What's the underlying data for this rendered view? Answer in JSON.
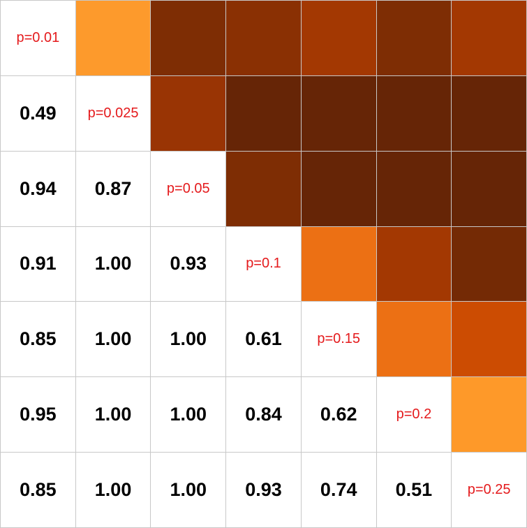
{
  "chart_data": {
    "type": "heatmap",
    "labels": [
      "p=0.01",
      "p=0.025",
      "p=0.05",
      "p=0.1",
      "p=0.15",
      "p=0.2",
      "p=0.25"
    ],
    "lower_triangle_values": [
      [
        null,
        null,
        null,
        null,
        null,
        null,
        null
      ],
      [
        "0.49",
        null,
        null,
        null,
        null,
        null,
        null
      ],
      [
        "0.94",
        "0.87",
        null,
        null,
        null,
        null,
        null
      ],
      [
        "0.91",
        "1.00",
        "0.93",
        null,
        null,
        null,
        null
      ],
      [
        "0.85",
        "1.00",
        "1.00",
        "0.61",
        null,
        null,
        null
      ],
      [
        "0.95",
        "1.00",
        "1.00",
        "0.84",
        "0.62",
        null,
        null
      ],
      [
        "0.85",
        "1.00",
        "1.00",
        "0.93",
        "0.74",
        "0.51",
        null
      ]
    ],
    "upper_triangle_colors": [
      [
        null,
        "#fd9a2c",
        "#7e2d04",
        "#8a3003",
        "#a33802",
        "#7e2d04",
        "#a33802"
      ],
      [
        null,
        null,
        "#993404",
        "#662506",
        "#662506",
        "#662506",
        "#662506"
      ],
      [
        null,
        null,
        null,
        "#7e2d04",
        "#662506",
        "#662506",
        "#662506"
      ],
      [
        null,
        null,
        null,
        null,
        "#ec7014",
        "#a33802",
        "#742a05"
      ],
      [
        null,
        null,
        null,
        null,
        null,
        "#ec7014",
        "#cc4c02"
      ],
      [
        null,
        null,
        null,
        null,
        null,
        null,
        "#fe9929"
      ],
      [
        null,
        null,
        null,
        null,
        null,
        null,
        null
      ]
    ],
    "diagonal_text_color": "#e41a1c",
    "value_text_color": "#000000",
    "grid_color": "#c8c8c8"
  }
}
